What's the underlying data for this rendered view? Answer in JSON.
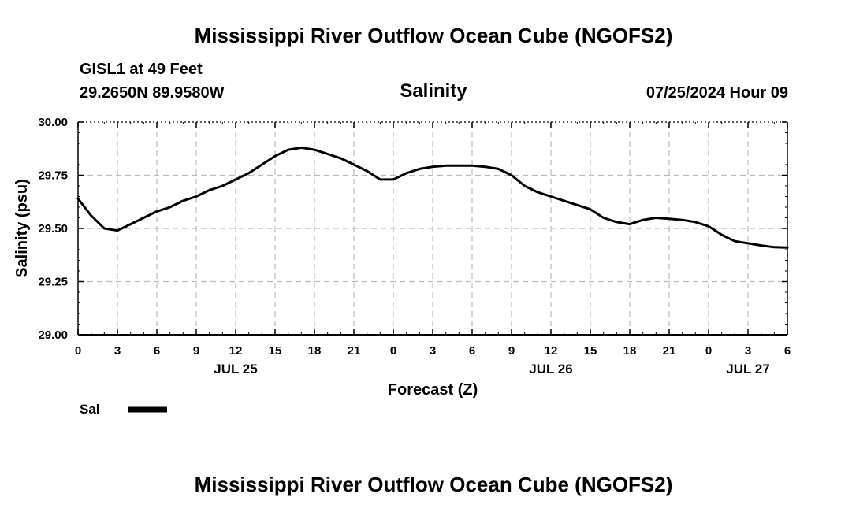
{
  "header": {
    "title": "Mississippi River Outflow Ocean Cube (NGOFS2)",
    "station": "GISL1 at 49 Feet",
    "coords": "29.2650N  89.9580W",
    "variable": "Salinity",
    "datetime": "07/25/2024 Hour 09"
  },
  "footer": {
    "title": "Mississippi River Outflow Ocean Cube (NGOFS2)"
  },
  "legend": {
    "label": "Sal",
    "color": "#000000"
  },
  "chart_data": {
    "type": "line",
    "title": "Salinity",
    "xlabel": "Forecast (Z)",
    "ylabel": "Salinity (psu)",
    "ylim": [
      29.0,
      30.0
    ],
    "yticks": [
      "29.00",
      "29.25",
      "29.50",
      "29.75",
      "30.00"
    ],
    "yvalues": [
      29.0,
      29.25,
      29.5,
      29.75,
      30.0
    ],
    "xlim": [
      0,
      54
    ],
    "xtick_hours": [
      0,
      3,
      6,
      9,
      12,
      15,
      18,
      21,
      24,
      27,
      30,
      33,
      36,
      39,
      42,
      45,
      48,
      51,
      54
    ],
    "xtick_labels": [
      "0",
      "3",
      "6",
      "9",
      "12",
      "15",
      "18",
      "21",
      "0",
      "3",
      "6",
      "9",
      "12",
      "15",
      "18",
      "21",
      "0",
      "3",
      "6"
    ],
    "day_labels": [
      {
        "hour": 12,
        "label": "JUL 25"
      },
      {
        "hour": 36,
        "label": "JUL 26"
      },
      {
        "hour": 51,
        "label": "JUL 27"
      }
    ],
    "grid": true,
    "series": [
      {
        "name": "Sal",
        "x": [
          0,
          1,
          2,
          3,
          4,
          5,
          6,
          7,
          8,
          9,
          10,
          11,
          12,
          13,
          14,
          15,
          16,
          17,
          18,
          19,
          20,
          21,
          22,
          23,
          24,
          25,
          26,
          27,
          28,
          29,
          30,
          31,
          32,
          33,
          34,
          35,
          36,
          37,
          38,
          39,
          40,
          41,
          42,
          43,
          44,
          45,
          46,
          47,
          48,
          49,
          50,
          51,
          52,
          53,
          54
        ],
        "values": [
          29.64,
          29.56,
          29.5,
          29.49,
          29.52,
          29.55,
          29.58,
          29.6,
          29.63,
          29.65,
          29.68,
          29.7,
          29.73,
          29.76,
          29.8,
          29.84,
          29.87,
          29.88,
          29.87,
          29.85,
          29.83,
          29.8,
          29.77,
          29.73,
          29.73,
          29.76,
          29.78,
          29.79,
          29.795,
          29.795,
          29.795,
          29.79,
          29.78,
          29.75,
          29.7,
          29.67,
          29.65,
          29.63,
          29.61,
          29.59,
          29.55,
          29.53,
          29.52,
          29.54,
          29.55,
          29.545,
          29.54,
          29.53,
          29.51,
          29.47,
          29.44,
          29.43,
          29.42,
          29.412,
          29.41
        ]
      }
    ]
  }
}
